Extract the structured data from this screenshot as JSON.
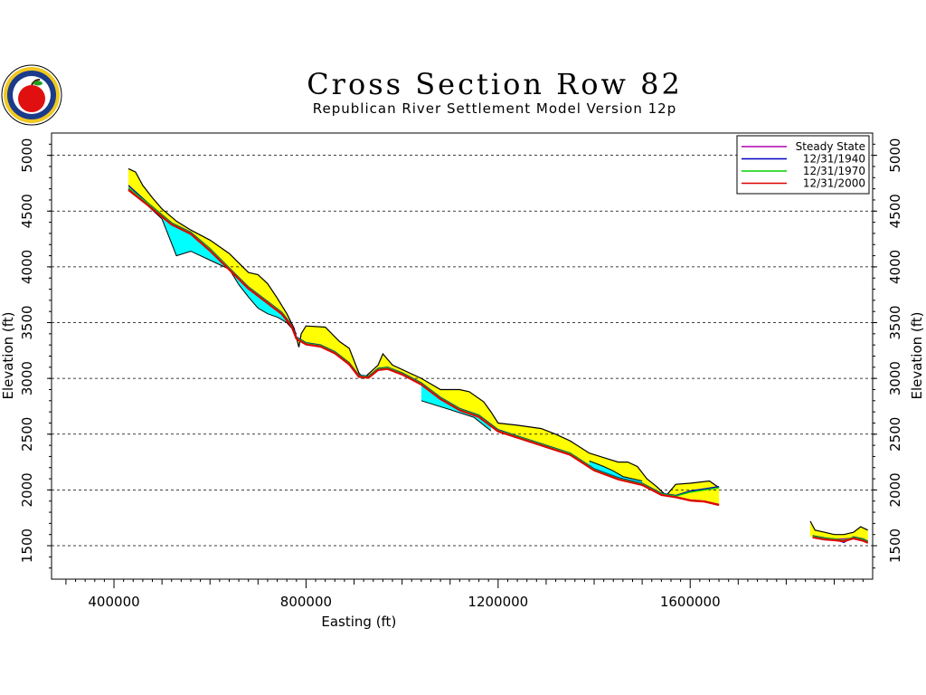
{
  "chart_data": {
    "type": "line",
    "title": "Cross Section Row 82",
    "subtitle": "Republican River Settlement Model Version 12p",
    "xlabel": "Easting (ft)",
    "ylabel": "Elevation (ft)",
    "xlim": [
      270000,
      1980000
    ],
    "ylim": [
      1200,
      5200
    ],
    "x_ticks": [
      400000,
      800000,
      1200000,
      1600000
    ],
    "x_tick_labels": [
      "400000",
      "800000",
      "1200000",
      "1600000"
    ],
    "y_ticks": [
      1500,
      2000,
      2500,
      3000,
      3500,
      4000,
      4500,
      5000
    ],
    "y_tick_labels": [
      "1500",
      "2000",
      "2500",
      "3000",
      "3500",
      "4000",
      "4500",
      "5000"
    ],
    "grid": "horizontal dashed",
    "legend_position": "top-right",
    "layer_colors": {
      "upper_layer": "#ffff00",
      "lower_layer": "#00ffff"
    },
    "layers": {
      "land_surface": [
        [
          [
            430000,
            4880
          ],
          [
            445000,
            4850
          ],
          [
            460000,
            4730
          ],
          [
            480000,
            4620
          ],
          [
            500000,
            4520
          ],
          [
            530000,
            4410
          ],
          [
            560000,
            4330
          ],
          [
            600000,
            4240
          ],
          [
            640000,
            4120
          ],
          [
            680000,
            3950
          ],
          [
            700000,
            3930
          ],
          [
            720000,
            3850
          ],
          [
            740000,
            3720
          ],
          [
            760000,
            3580
          ],
          [
            775000,
            3450
          ],
          [
            785000,
            3280
          ],
          [
            790000,
            3400
          ],
          [
            800000,
            3470
          ],
          [
            840000,
            3460
          ],
          [
            870000,
            3330
          ],
          [
            890000,
            3270
          ],
          [
            910000,
            3050
          ],
          [
            920000,
            3000
          ],
          [
            950000,
            3120
          ],
          [
            960000,
            3220
          ],
          [
            980000,
            3120
          ],
          [
            1040000,
            3000
          ],
          [
            1080000,
            2900
          ],
          [
            1120000,
            2900
          ],
          [
            1140000,
            2880
          ],
          [
            1170000,
            2790
          ],
          [
            1185000,
            2700
          ],
          [
            1200000,
            2600
          ],
          [
            1240000,
            2580
          ],
          [
            1290000,
            2550
          ],
          [
            1320000,
            2500
          ],
          [
            1350000,
            2440
          ],
          [
            1390000,
            2330
          ],
          [
            1420000,
            2290
          ],
          [
            1450000,
            2250
          ],
          [
            1470000,
            2250
          ],
          [
            1490000,
            2210
          ],
          [
            1510000,
            2100
          ],
          [
            1530000,
            2030
          ],
          [
            1550000,
            1950
          ],
          [
            1570000,
            2050
          ],
          [
            1600000,
            2060
          ],
          [
            1640000,
            2080
          ],
          [
            1660000,
            2020
          ]
        ],
        [
          [
            1850000,
            1720
          ],
          [
            1860000,
            1640
          ],
          [
            1880000,
            1620
          ],
          [
            1900000,
            1600
          ],
          [
            1920000,
            1600
          ],
          [
            1940000,
            1620
          ],
          [
            1955000,
            1670
          ],
          [
            1970000,
            1640
          ]
        ]
      ],
      "layer_boundary": [
        [
          [
            430000,
            4710
          ],
          [
            500000,
            4430
          ],
          [
            530000,
            4100
          ],
          [
            560000,
            4140
          ],
          [
            600000,
            4060
          ],
          [
            640000,
            3980
          ],
          [
            660000,
            3840
          ],
          [
            680000,
            3730
          ],
          [
            700000,
            3630
          ],
          [
            720000,
            3580
          ],
          [
            740000,
            3550
          ],
          [
            760000,
            3500
          ],
          [
            780000,
            3400
          ]
        ],
        [
          [
            1040000,
            2800
          ],
          [
            1100000,
            2720
          ],
          [
            1150000,
            2650
          ],
          [
            1185000,
            2530
          ]
        ],
        [
          [
            1390000,
            2260
          ],
          [
            1420000,
            2210
          ],
          [
            1440000,
            2170
          ],
          [
            1460000,
            2120
          ],
          [
            1500000,
            2080
          ]
        ]
      ]
    },
    "series": [
      {
        "name": "Steady State",
        "color": "#b000b0",
        "segments": [
          [
            [
              430000,
              4700
            ],
            [
              470000,
              4560
            ],
            [
              520000,
              4380
            ],
            [
              560000,
              4300
            ],
            [
              600000,
              4150
            ],
            [
              640000,
              3980
            ],
            [
              680000,
              3810
            ],
            [
              720000,
              3680
            ],
            [
              750000,
              3580
            ],
            [
              770000,
              3470
            ],
            [
              780000,
              3360
            ],
            [
              800000,
              3310
            ],
            [
              830000,
              3290
            ],
            [
              860000,
              3230
            ],
            [
              890000,
              3130
            ],
            [
              910000,
              3020
            ],
            [
              930000,
              3010
            ],
            [
              950000,
              3080
            ],
            [
              970000,
              3090
            ],
            [
              1000000,
              3040
            ],
            [
              1040000,
              2950
            ],
            [
              1080000,
              2820
            ],
            [
              1120000,
              2720
            ],
            [
              1160000,
              2660
            ],
            [
              1200000,
              2530
            ],
            [
              1250000,
              2460
            ],
            [
              1300000,
              2390
            ],
            [
              1350000,
              2320
            ],
            [
              1400000,
              2180
            ],
            [
              1450000,
              2100
            ],
            [
              1500000,
              2050
            ],
            [
              1540000,
              1960
            ],
            [
              1570000,
              1940
            ],
            [
              1600000,
              1910
            ],
            [
              1630000,
              1900
            ],
            [
              1660000,
              1870
            ]
          ],
          [
            [
              1855000,
              1580
            ],
            [
              1880000,
              1560
            ],
            [
              1900000,
              1560
            ],
            [
              1920000,
              1560
            ],
            [
              1940000,
              1570
            ],
            [
              1960000,
              1550
            ],
            [
              1970000,
              1530
            ]
          ]
        ]
      },
      {
        "name": "12/31/1940",
        "color": "#0000c0",
        "segments": [
          [
            [
              430000,
              4730
            ],
            [
              470000,
              4575
            ],
            [
              520000,
              4395
            ],
            [
              560000,
              4310
            ],
            [
              600000,
              4165
            ],
            [
              640000,
              3990
            ],
            [
              680000,
              3820
            ],
            [
              720000,
              3690
            ],
            [
              750000,
              3590
            ],
            [
              770000,
              3480
            ],
            [
              780000,
              3370
            ],
            [
              800000,
              3320
            ],
            [
              830000,
              3300
            ],
            [
              860000,
              3240
            ],
            [
              890000,
              3140
            ],
            [
              910000,
              3030
            ],
            [
              930000,
              3020
            ],
            [
              950000,
              3090
            ],
            [
              970000,
              3100
            ],
            [
              1000000,
              3050
            ],
            [
              1040000,
              2960
            ],
            [
              1080000,
              2830
            ],
            [
              1120000,
              2730
            ],
            [
              1160000,
              2670
            ],
            [
              1200000,
              2540
            ],
            [
              1250000,
              2470
            ],
            [
              1300000,
              2400
            ],
            [
              1350000,
              2330
            ],
            [
              1400000,
              2190
            ],
            [
              1450000,
              2110
            ],
            [
              1500000,
              2060
            ],
            [
              1540000,
              1970
            ],
            [
              1570000,
              1950
            ],
            [
              1600000,
              1990
            ],
            [
              1630000,
              2010
            ],
            [
              1660000,
              2030
            ]
          ],
          [
            [
              1855000,
              1590
            ],
            [
              1880000,
              1570
            ],
            [
              1900000,
              1560
            ],
            [
              1920000,
              1530
            ],
            [
              1940000,
              1580
            ],
            [
              1960000,
              1560
            ],
            [
              1970000,
              1540
            ]
          ]
        ]
      },
      {
        "name": "12/31/1970",
        "color": "#00d000",
        "segments": [
          [
            [
              430000,
              4710
            ],
            [
              470000,
              4570
            ],
            [
              520000,
              4390
            ],
            [
              560000,
              4305
            ],
            [
              600000,
              4160
            ],
            [
              640000,
              3985
            ],
            [
              680000,
              3815
            ],
            [
              720000,
              3685
            ],
            [
              750000,
              3585
            ],
            [
              770000,
              3475
            ],
            [
              780000,
              3365
            ],
            [
              800000,
              3315
            ],
            [
              830000,
              3295
            ],
            [
              860000,
              3235
            ],
            [
              890000,
              3135
            ],
            [
              910000,
              3025
            ],
            [
              930000,
              3015
            ],
            [
              950000,
              3085
            ],
            [
              970000,
              3095
            ],
            [
              1000000,
              3045
            ],
            [
              1040000,
              2955
            ],
            [
              1080000,
              2825
            ],
            [
              1120000,
              2725
            ],
            [
              1160000,
              2665
            ],
            [
              1200000,
              2535
            ],
            [
              1250000,
              2465
            ],
            [
              1300000,
              2395
            ],
            [
              1350000,
              2325
            ],
            [
              1400000,
              2185
            ],
            [
              1450000,
              2105
            ],
            [
              1500000,
              2055
            ],
            [
              1540000,
              1965
            ],
            [
              1570000,
              1945
            ],
            [
              1600000,
              1980
            ],
            [
              1630000,
              2000
            ],
            [
              1660000,
              2020
            ]
          ],
          [
            [
              1855000,
              1585
            ],
            [
              1880000,
              1565
            ],
            [
              1900000,
              1560
            ],
            [
              1920000,
              1550
            ],
            [
              1940000,
              1575
            ],
            [
              1960000,
              1555
            ],
            [
              1970000,
              1535
            ]
          ]
        ]
      },
      {
        "name": "12/31/2000",
        "color": "#e00000",
        "segments": [
          [
            [
              430000,
              4690
            ],
            [
              470000,
              4555
            ],
            [
              520000,
              4380
            ],
            [
              560000,
              4295
            ],
            [
              600000,
              4145
            ],
            [
              640000,
              3975
            ],
            [
              680000,
              3805
            ],
            [
              720000,
              3675
            ],
            [
              750000,
              3575
            ],
            [
              770000,
              3465
            ],
            [
              780000,
              3355
            ],
            [
              800000,
              3305
            ],
            [
              830000,
              3285
            ],
            [
              860000,
              3225
            ],
            [
              890000,
              3125
            ],
            [
              910000,
              3015
            ],
            [
              930000,
              3005
            ],
            [
              950000,
              3075
            ],
            [
              970000,
              3085
            ],
            [
              1000000,
              3035
            ],
            [
              1040000,
              2945
            ],
            [
              1080000,
              2815
            ],
            [
              1120000,
              2715
            ],
            [
              1160000,
              2655
            ],
            [
              1200000,
              2525
            ],
            [
              1250000,
              2455
            ],
            [
              1300000,
              2385
            ],
            [
              1350000,
              2315
            ],
            [
              1400000,
              2175
            ],
            [
              1450000,
              2095
            ],
            [
              1500000,
              2045
            ],
            [
              1540000,
              1955
            ],
            [
              1570000,
              1935
            ],
            [
              1600000,
              1905
            ],
            [
              1630000,
              1895
            ],
            [
              1660000,
              1865
            ]
          ],
          [
            [
              1855000,
              1575
            ],
            [
              1880000,
              1555
            ],
            [
              1900000,
              1550
            ],
            [
              1920000,
              1540
            ],
            [
              1940000,
              1565
            ],
            [
              1960000,
              1545
            ],
            [
              1970000,
              1525
            ]
          ]
        ]
      }
    ]
  }
}
